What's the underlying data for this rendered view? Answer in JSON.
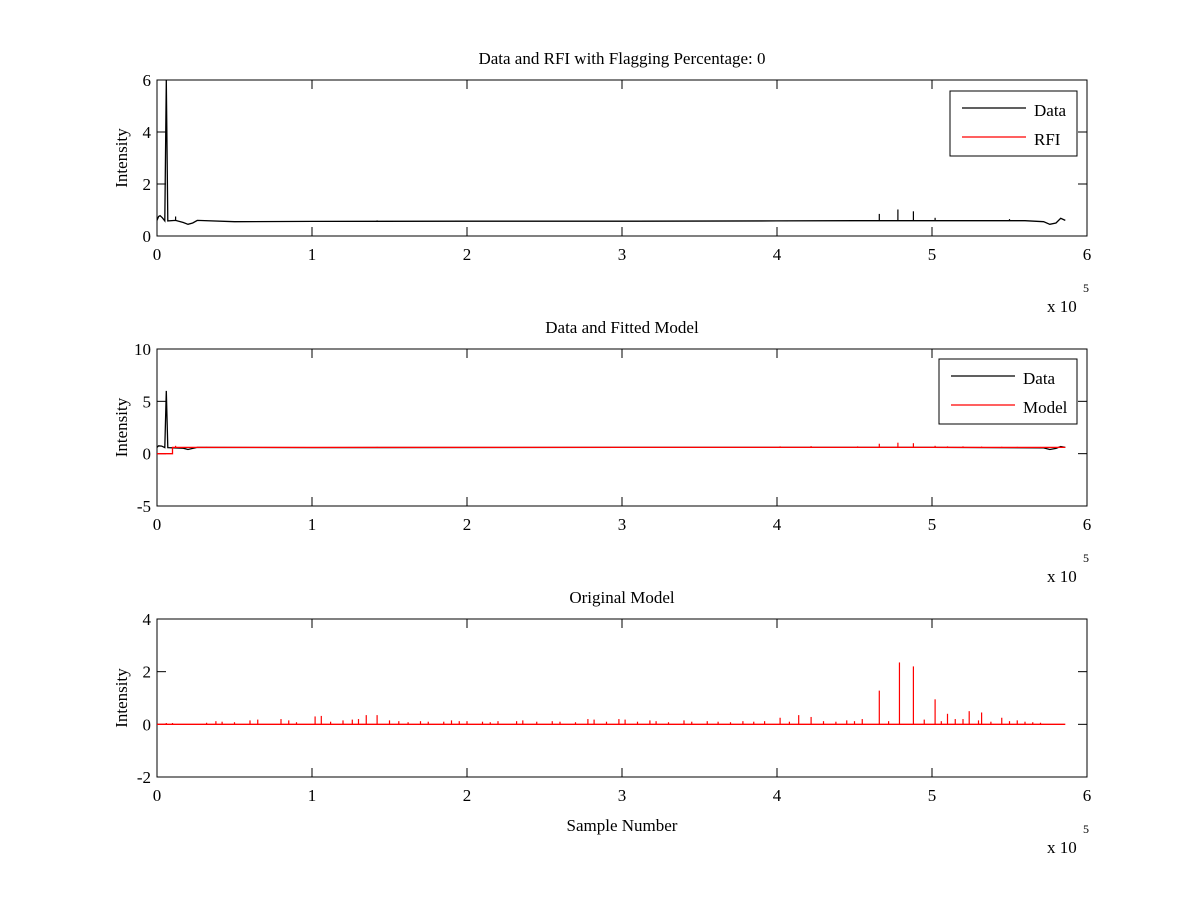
{
  "chart_data": [
    {
      "type": "line",
      "title": "Data and RFI with Flagging Percentage: 0",
      "xlabel": "",
      "ylabel": "Intensity",
      "xlim": [
        0,
        6
      ],
      "ylim": [
        0,
        6
      ],
      "xticks": [
        0,
        1,
        2,
        3,
        4,
        5,
        6
      ],
      "yticks": [
        0,
        2,
        4,
        6
      ],
      "x_multiplier": "x 10",
      "x_multiplier_exp": "5",
      "legend": {
        "placement": "top-right",
        "entries": [
          "Data",
          "RFI"
        ]
      },
      "grid": false,
      "series": [
        {
          "name": "Data",
          "color": "#000000",
          "points": [
            [
              0.0,
              0.6
            ],
            [
              0.01,
              0.75
            ],
            [
              0.02,
              0.78
            ],
            [
              0.035,
              0.7
            ],
            [
              0.05,
              0.58
            ],
            [
              0.06,
              6.0
            ],
            [
              0.07,
              0.58
            ],
            [
              0.12,
              0.6
            ],
            [
              0.17,
              0.52
            ],
            [
              0.2,
              0.45
            ],
            [
              0.23,
              0.5
            ],
            [
              0.26,
              0.6
            ],
            [
              0.5,
              0.55
            ],
            [
              1.0,
              0.56
            ],
            [
              2.0,
              0.57
            ],
            [
              3.0,
              0.57
            ],
            [
              4.0,
              0.58
            ],
            [
              4.5,
              0.59
            ],
            [
              5.0,
              0.59
            ],
            [
              5.6,
              0.59
            ],
            [
              5.72,
              0.55
            ],
            [
              5.76,
              0.45
            ],
            [
              5.8,
              0.5
            ],
            [
              5.83,
              0.68
            ],
            [
              5.86,
              0.6
            ]
          ],
          "spikes": [
            [
              0.12,
              0.75
            ],
            [
              0.32,
              0.6
            ],
            [
              1.42,
              0.6
            ],
            [
              4.66,
              0.85
            ],
            [
              4.78,
              1.02
            ],
            [
              4.88,
              0.95
            ],
            [
              5.02,
              0.7
            ],
            [
              5.5,
              0.65
            ]
          ]
        },
        {
          "name": "RFI",
          "color": "#ff0000",
          "points": [],
          "spikes": []
        }
      ]
    },
    {
      "type": "line",
      "title": "Data and Fitted Model",
      "xlabel": "",
      "ylabel": "Intensity",
      "xlim": [
        0,
        6
      ],
      "ylim": [
        -5,
        10
      ],
      "xticks": [
        0,
        1,
        2,
        3,
        4,
        5,
        6
      ],
      "yticks": [
        -5,
        0,
        5,
        10
      ],
      "x_multiplier": "x 10",
      "x_multiplier_exp": "5",
      "legend": {
        "placement": "top-right",
        "entries": [
          "Data",
          "Model"
        ]
      },
      "grid": false,
      "series": [
        {
          "name": "Data",
          "color": "#000000",
          "points": [
            [
              0.0,
              0.6
            ],
            [
              0.01,
              0.75
            ],
            [
              0.03,
              0.72
            ],
            [
              0.05,
              0.58
            ],
            [
              0.06,
              6.0
            ],
            [
              0.07,
              0.58
            ],
            [
              0.17,
              0.52
            ],
            [
              0.2,
              0.4
            ],
            [
              0.23,
              0.5
            ],
            [
              0.26,
              0.6
            ],
            [
              1.0,
              0.58
            ],
            [
              3.0,
              0.6
            ],
            [
              5.0,
              0.6
            ],
            [
              5.72,
              0.55
            ],
            [
              5.76,
              0.4
            ],
            [
              5.8,
              0.5
            ],
            [
              5.83,
              0.68
            ],
            [
              5.86,
              0.6
            ]
          ],
          "spikes": []
        },
        {
          "name": "Model",
          "color": "#ff0000",
          "points": [
            [
              0.0,
              0.0
            ],
            [
              0.1,
              0.0
            ],
            [
              0.1,
              0.6
            ],
            [
              5.86,
              0.6
            ]
          ],
          "spikes": [
            [
              0.12,
              0.75
            ],
            [
              0.32,
              0.65
            ],
            [
              0.6,
              0.62
            ],
            [
              1.42,
              0.65
            ],
            [
              4.02,
              0.7
            ],
            [
              4.22,
              0.72
            ],
            [
              4.52,
              0.7
            ],
            [
              4.66,
              0.95
            ],
            [
              4.78,
              1.05
            ],
            [
              4.88,
              1.0
            ],
            [
              5.02,
              0.75
            ],
            [
              5.1,
              0.7
            ],
            [
              5.2,
              0.7
            ],
            [
              5.32,
              0.68
            ],
            [
              5.45,
              0.66
            ],
            [
              5.55,
              0.65
            ],
            [
              5.7,
              0.64
            ]
          ]
        }
      ]
    },
    {
      "type": "line",
      "title": "Original Model",
      "xlabel": "Sample Number",
      "ylabel": "Intensity",
      "xlim": [
        0,
        6
      ],
      "ylim": [
        -2,
        4
      ],
      "xticks": [
        0,
        1,
        2,
        3,
        4,
        5,
        6
      ],
      "yticks": [
        -2,
        0,
        2,
        4
      ],
      "x_multiplier": "x 10",
      "x_multiplier_exp": "5",
      "legend": null,
      "grid": false,
      "series": [
        {
          "name": "",
          "color": "#ff0000",
          "points": [
            [
              0.0,
              0.0
            ],
            [
              5.86,
              0.0
            ]
          ],
          "spikes": [
            [
              0.06,
              0.05
            ],
            [
              0.1,
              0.05
            ],
            [
              0.32,
              0.06
            ],
            [
              0.38,
              0.12
            ],
            [
              0.42,
              0.1
            ],
            [
              0.5,
              0.08
            ],
            [
              0.6,
              0.15
            ],
            [
              0.65,
              0.18
            ],
            [
              0.8,
              0.2
            ],
            [
              0.85,
              0.15
            ],
            [
              0.9,
              0.08
            ],
            [
              1.02,
              0.3
            ],
            [
              1.06,
              0.32
            ],
            [
              1.12,
              0.1
            ],
            [
              1.2,
              0.15
            ],
            [
              1.26,
              0.18
            ],
            [
              1.3,
              0.2
            ],
            [
              1.35,
              0.35
            ],
            [
              1.42,
              0.35
            ],
            [
              1.5,
              0.15
            ],
            [
              1.56,
              0.12
            ],
            [
              1.62,
              0.08
            ],
            [
              1.7,
              0.12
            ],
            [
              1.75,
              0.1
            ],
            [
              1.85,
              0.1
            ],
            [
              1.9,
              0.15
            ],
            [
              1.95,
              0.12
            ],
            [
              2.0,
              0.12
            ],
            [
              2.1,
              0.1
            ],
            [
              2.15,
              0.08
            ],
            [
              2.2,
              0.12
            ],
            [
              2.32,
              0.12
            ],
            [
              2.36,
              0.15
            ],
            [
              2.45,
              0.1
            ],
            [
              2.55,
              0.12
            ],
            [
              2.6,
              0.1
            ],
            [
              2.7,
              0.08
            ],
            [
              2.78,
              0.2
            ],
            [
              2.82,
              0.18
            ],
            [
              2.9,
              0.1
            ],
            [
              2.98,
              0.2
            ],
            [
              3.02,
              0.18
            ],
            [
              3.1,
              0.1
            ],
            [
              3.18,
              0.15
            ],
            [
              3.22,
              0.12
            ],
            [
              3.3,
              0.08
            ],
            [
              3.4,
              0.15
            ],
            [
              3.45,
              0.1
            ],
            [
              3.55,
              0.12
            ],
            [
              3.62,
              0.1
            ],
            [
              3.7,
              0.08
            ],
            [
              3.78,
              0.12
            ],
            [
              3.85,
              0.1
            ],
            [
              3.92,
              0.12
            ],
            [
              4.02,
              0.25
            ],
            [
              4.08,
              0.1
            ],
            [
              4.14,
              0.35
            ],
            [
              4.22,
              0.28
            ],
            [
              4.3,
              0.12
            ],
            [
              4.38,
              0.1
            ],
            [
              4.45,
              0.15
            ],
            [
              4.5,
              0.12
            ],
            [
              4.55,
              0.2
            ],
            [
              4.66,
              1.28
            ],
            [
              4.72,
              0.12
            ],
            [
              4.79,
              2.35
            ],
            [
              4.88,
              2.2
            ],
            [
              4.95,
              0.18
            ],
            [
              5.02,
              0.95
            ],
            [
              5.06,
              0.12
            ],
            [
              5.1,
              0.4
            ],
            [
              5.15,
              0.2
            ],
            [
              5.2,
              0.2
            ],
            [
              5.24,
              0.5
            ],
            [
              5.3,
              0.15
            ],
            [
              5.32,
              0.45
            ],
            [
              5.38,
              0.1
            ],
            [
              5.45,
              0.25
            ],
            [
              5.5,
              0.12
            ],
            [
              5.55,
              0.15
            ],
            [
              5.6,
              0.1
            ],
            [
              5.65,
              0.08
            ],
            [
              5.7,
              0.06
            ]
          ]
        }
      ]
    }
  ]
}
